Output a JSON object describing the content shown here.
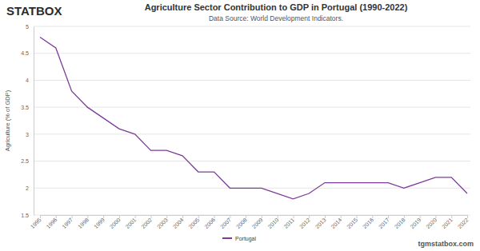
{
  "logo": "STATBOX",
  "watermark": "tgmstatbox.com",
  "chart_data": {
    "type": "line",
    "title": "Agriculture Sector Contribution to GDP in Portugal (1990-2022)",
    "subtitle": "Data Source: World Development Indicators.",
    "y_label": "Agriculture (% of GDP)",
    "categories": [
      "1995",
      "1996",
      "1997",
      "1998",
      "1999",
      "2000",
      "2001",
      "2002",
      "2003",
      "2004",
      "2005",
      "2006",
      "2007",
      "2008",
      "2009",
      "2010",
      "2011",
      "2012",
      "2013",
      "2014",
      "2015",
      "2016",
      "2017",
      "2018",
      "2019",
      "2020",
      "2021",
      "2022"
    ],
    "series": [
      {
        "name": "Portugal",
        "color": "#7d3c98",
        "values": [
          4.8,
          4.6,
          3.8,
          3.5,
          3.3,
          3.1,
          3.0,
          2.7,
          2.7,
          2.6,
          2.3,
          2.3,
          2.0,
          2.0,
          2.0,
          1.9,
          1.8,
          1.9,
          2.1,
          2.1,
          2.1,
          2.1,
          2.1,
          2.0,
          2.1,
          2.2,
          2.2,
          1.9
        ]
      }
    ],
    "ylim": [
      1.5,
      5
    ],
    "yticks": [
      1.5,
      2,
      2.5,
      3,
      3.5,
      4,
      4.5,
      5
    ],
    "grid": true,
    "legend": "bottom"
  }
}
